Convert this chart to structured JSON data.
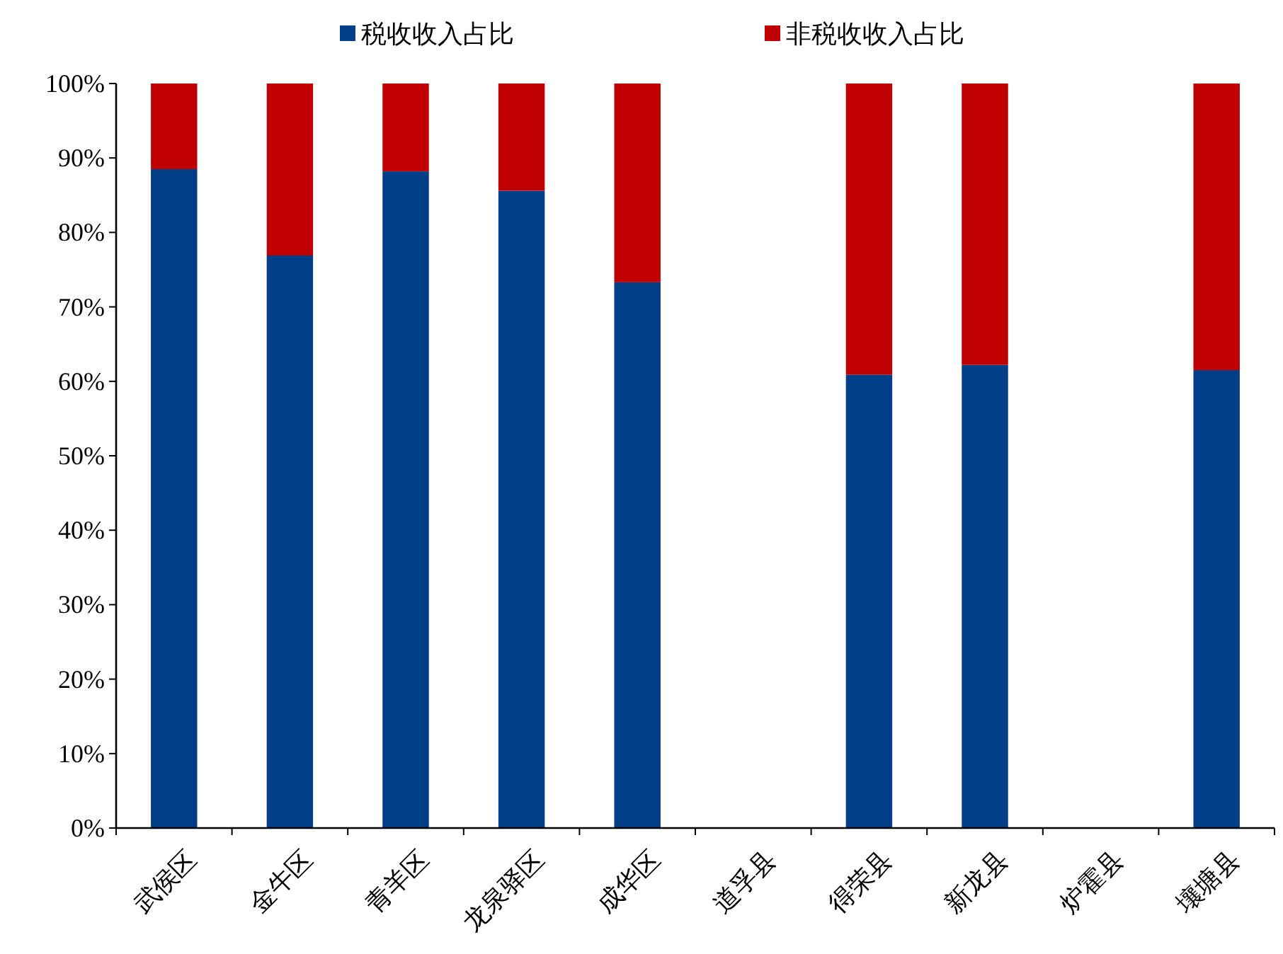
{
  "chart_data": {
    "type": "bar",
    "stacked": true,
    "categories": [
      "武侯区",
      "金牛区",
      "青羊区",
      "龙泉驿区",
      "成华区",
      "道孚县",
      "得荣县",
      "新龙县",
      "炉霍县",
      "壤塘县"
    ],
    "series": [
      {
        "name": "税收收入占比",
        "color": "#003f87",
        "values": [
          88.5,
          76.9,
          88.2,
          85.6,
          73.3,
          null,
          60.9,
          62.2,
          null,
          61.5
        ]
      },
      {
        "name": "非税收收入占比",
        "color": "#c00000",
        "values": [
          11.5,
          23.1,
          11.8,
          14.4,
          26.7,
          null,
          39.1,
          37.8,
          null,
          38.5
        ]
      }
    ],
    "ylim": [
      0,
      100
    ],
    "yticks": [
      {
        "value": 0,
        "label": "0%"
      },
      {
        "value": 10,
        "label": "10%"
      },
      {
        "value": 20,
        "label": "20%"
      },
      {
        "value": 30,
        "label": "30%"
      },
      {
        "value": 40,
        "label": "40%"
      },
      {
        "value": 50,
        "label": "50%"
      },
      {
        "value": 60,
        "label": "60%"
      },
      {
        "value": 70,
        "label": "70%"
      },
      {
        "value": 80,
        "label": "80%"
      },
      {
        "value": 90,
        "label": "90%"
      },
      {
        "value": 100,
        "label": "100%"
      }
    ],
    "legend": "top",
    "grid": false
  }
}
